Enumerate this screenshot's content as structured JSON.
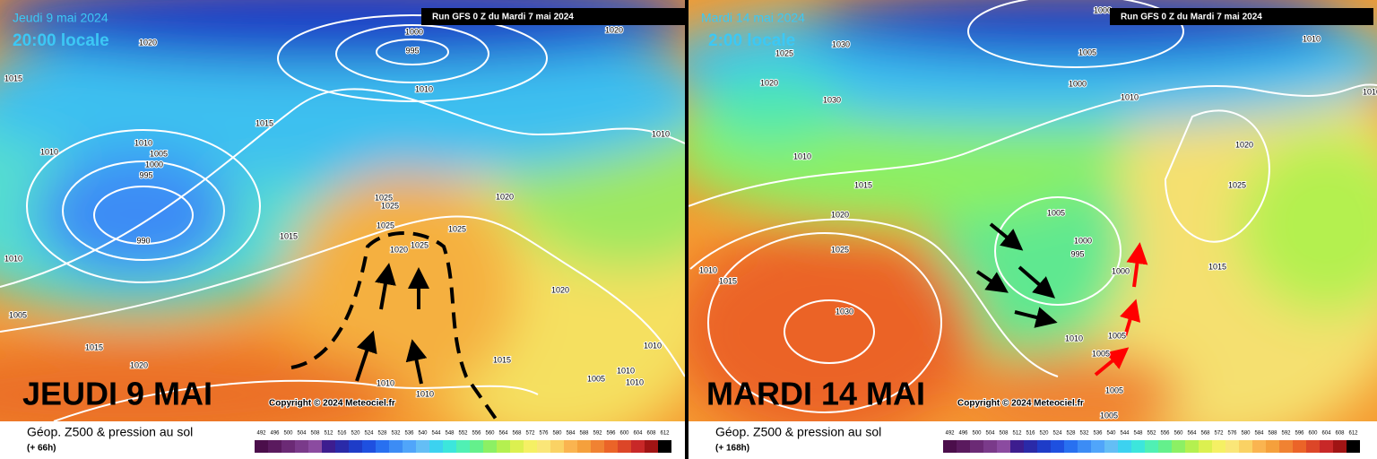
{
  "panels": [
    {
      "date": "Jeudi 9 mai 2024",
      "time": "20:00 locale",
      "run": "Run GFS 0 Z du Mardi 7 mai 2024",
      "headline": "JEUDI 9 MAI",
      "copyright": "Copyright © 2024 Meteociel.fr",
      "caption": "Géop. Z500 & pression au sol",
      "lead": "(+ 66h)",
      "isobars": [
        1020,
        1015,
        1000,
        995,
        1010,
        1020,
        1015,
        1010,
        1005,
        1000,
        995,
        1010,
        990,
        1015,
        1010,
        1005,
        1015,
        1020,
        1025,
        1025,
        1025,
        1025,
        1025,
        1020,
        1020,
        1010,
        1010,
        1015,
        1010,
        1005,
        1010,
        1010,
        1010,
        1020
      ]
    },
    {
      "date": "Mardi 14 mai 2024",
      "time": "2:00 locale",
      "run": "Run GFS 0 Z du Mardi 7 mai 2024",
      "headline": "MARDI 14 MAI",
      "copyright": "Copyright © 2024 Meteociel.fr",
      "caption": "Géop. Z500 & pression au sol",
      "lead": "(+ 168h)",
      "isobars": [
        1030,
        1025,
        1020,
        1030,
        1010,
        1015,
        1020,
        1025,
        1030,
        1010,
        1015,
        1000,
        1005,
        1000,
        1010,
        1010,
        1020,
        1025,
        1005,
        1000,
        995,
        1000,
        1015,
        1010,
        1005,
        1005,
        1005,
        1005,
        1010
      ]
    }
  ],
  "scale": {
    "labels": [
      492,
      496,
      500,
      504,
      508,
      512,
      516,
      520,
      524,
      528,
      532,
      536,
      540,
      544,
      548,
      552,
      556,
      560,
      564,
      568,
      572,
      576,
      580,
      584,
      588,
      592,
      596,
      600,
      604,
      608,
      612
    ],
    "colors": [
      "#4b0e4b",
      "#5a1a5e",
      "#6b2a75",
      "#7a3a8a",
      "#8b4ba0",
      "#3d1d8f",
      "#2a2aa8",
      "#1e3cc8",
      "#1e50e0",
      "#2870f0",
      "#3c8cf5",
      "#50a5fa",
      "#64bef5",
      "#3cd2f0",
      "#3ce6dc",
      "#50f0b4",
      "#64f08c",
      "#8cf064",
      "#b4f050",
      "#dcf050",
      "#f5f064",
      "#fae678",
      "#fad264",
      "#fab450",
      "#f5a03c",
      "#f08232",
      "#eb6428",
      "#dc4628",
      "#c82828",
      "#a01414",
      "#000000"
    ]
  }
}
